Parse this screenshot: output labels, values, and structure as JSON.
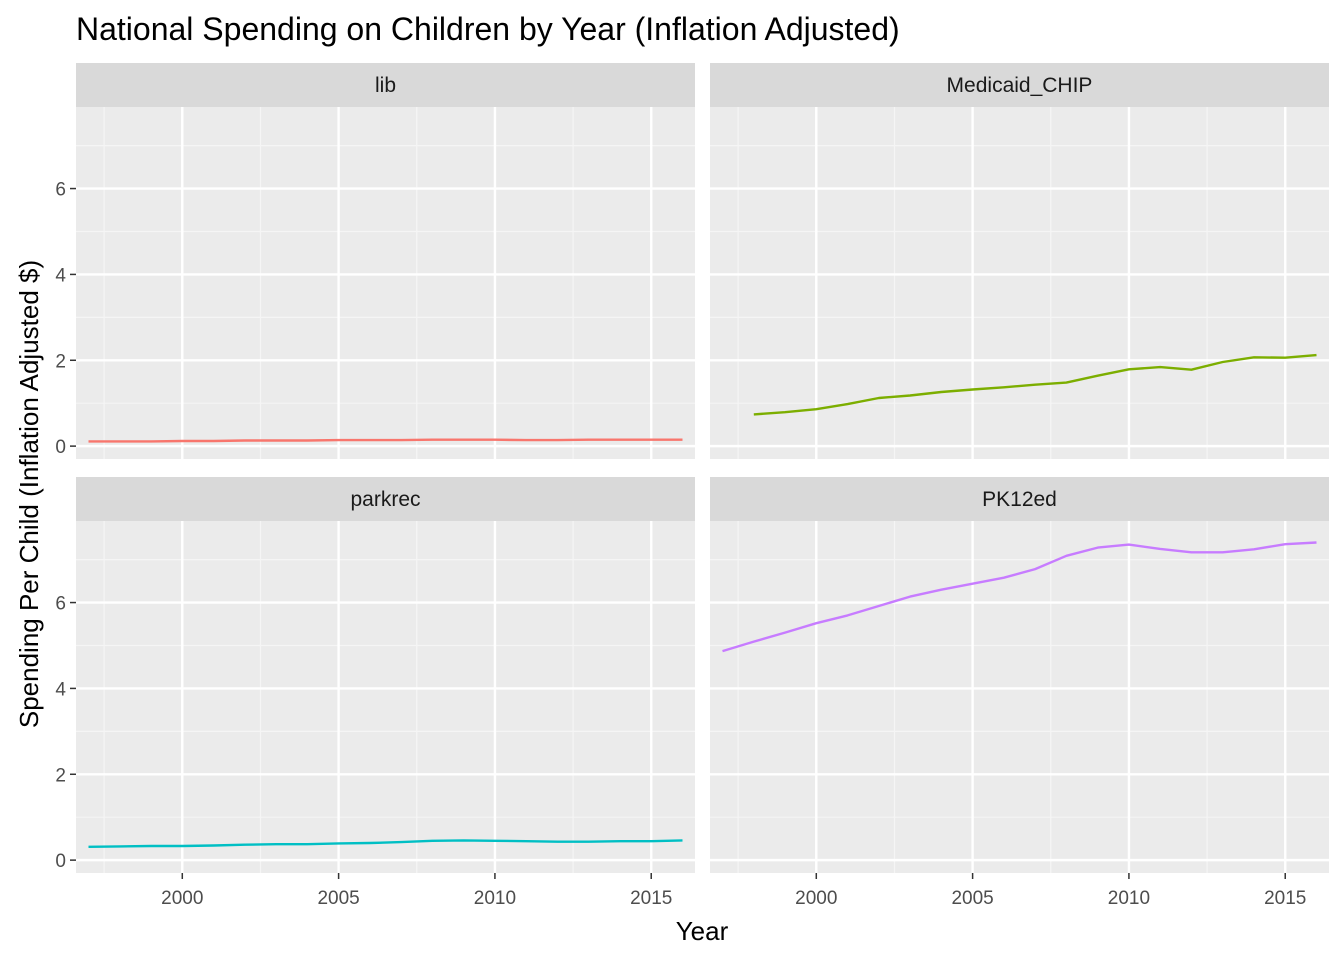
{
  "chart_data": {
    "type": "line",
    "title": "National Spending on Children by Year (Inflation Adjusted)",
    "xlabel": "Year",
    "ylabel": "Spending Per Child (Inflation Adjusted $)",
    "xlim": [
      1996.6,
      2016.4
    ],
    "ylim": [
      -0.3,
      7.9
    ],
    "x_ticks": [
      2000,
      2005,
      2010,
      2015
    ],
    "y_ticks": [
      0,
      2,
      4,
      6
    ],
    "grid": true,
    "legend": "none",
    "facets": [
      {
        "label": "lib",
        "color": "#F8766D",
        "x": [
          1997,
          1998,
          1999,
          2000,
          2001,
          2002,
          2003,
          2004,
          2005,
          2006,
          2007,
          2008,
          2009,
          2010,
          2011,
          2012,
          2013,
          2014,
          2015,
          2016
        ],
        "values": [
          0.11,
          0.11,
          0.11,
          0.12,
          0.12,
          0.13,
          0.13,
          0.13,
          0.14,
          0.14,
          0.14,
          0.15,
          0.15,
          0.15,
          0.14,
          0.14,
          0.15,
          0.15,
          0.15,
          0.15
        ]
      },
      {
        "label": "Medicaid_CHIP",
        "color": "#7CAE00",
        "x": [
          1998,
          1999,
          2000,
          2001,
          2002,
          2003,
          2004,
          2005,
          2006,
          2007,
          2008,
          2009,
          2010,
          2011,
          2012,
          2013,
          2014,
          2015,
          2016
        ],
        "values": [
          0.74,
          0.79,
          0.86,
          0.98,
          1.12,
          1.18,
          1.26,
          1.32,
          1.37,
          1.43,
          1.48,
          1.64,
          1.79,
          1.84,
          1.78,
          1.96,
          2.07,
          2.06,
          2.12
        ]
      },
      {
        "label": "parkrec",
        "color": "#00BFC4",
        "x": [
          1997,
          1998,
          1999,
          2000,
          2001,
          2002,
          2003,
          2004,
          2005,
          2006,
          2007,
          2008,
          2009,
          2010,
          2011,
          2012,
          2013,
          2014,
          2015,
          2016
        ],
        "values": [
          0.31,
          0.32,
          0.33,
          0.33,
          0.34,
          0.36,
          0.37,
          0.37,
          0.39,
          0.4,
          0.42,
          0.45,
          0.46,
          0.45,
          0.44,
          0.43,
          0.43,
          0.44,
          0.44,
          0.46
        ]
      },
      {
        "label": "PK12ed",
        "color": "#C77CFF",
        "x": [
          1997,
          1998,
          1999,
          2000,
          2001,
          2002,
          2003,
          2004,
          2005,
          2006,
          2007,
          2008,
          2009,
          2010,
          2011,
          2012,
          2013,
          2014,
          2015,
          2016
        ],
        "values": [
          4.87,
          5.09,
          5.3,
          5.52,
          5.7,
          5.92,
          6.14,
          6.3,
          6.44,
          6.58,
          6.78,
          7.09,
          7.28,
          7.35,
          7.25,
          7.17,
          7.17,
          7.24,
          7.36,
          7.4
        ]
      }
    ]
  }
}
